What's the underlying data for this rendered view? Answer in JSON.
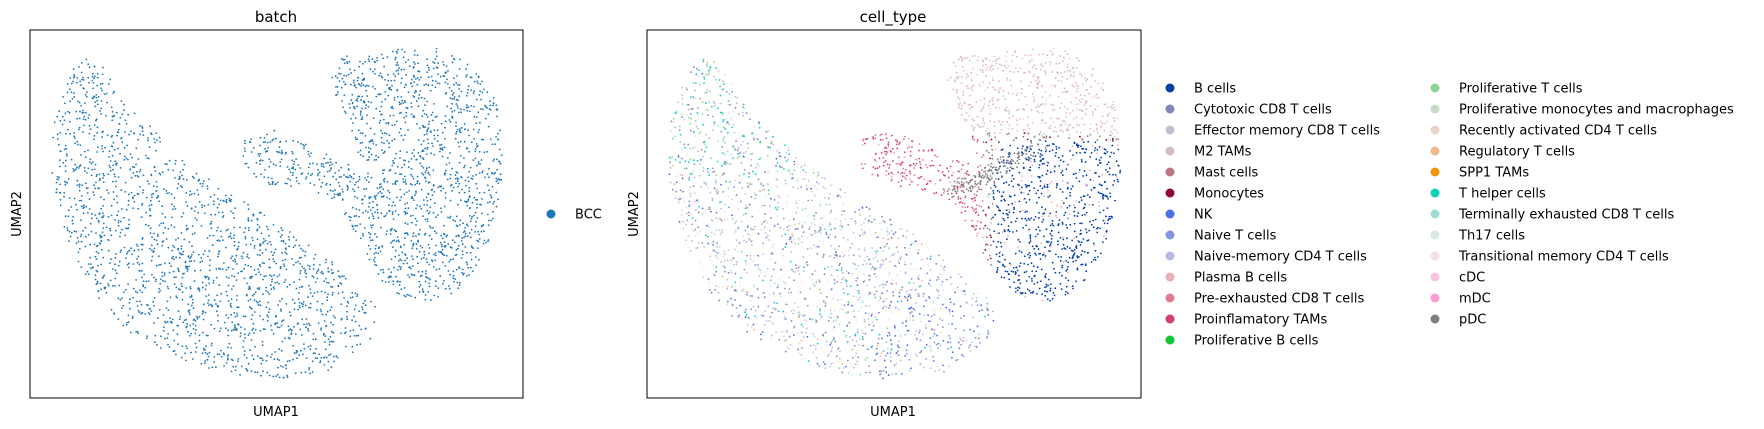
{
  "chart_data": [
    {
      "type": "scatter",
      "title": "batch",
      "xlabel": "UMAP1",
      "ylabel": "UMAP2",
      "legend_position": "right",
      "series": [
        {
          "name": "BCC",
          "color": "#1f77b4"
        }
      ]
    },
    {
      "type": "scatter",
      "title": "cell_type",
      "xlabel": "UMAP1",
      "ylabel": "UMAP2",
      "legend_position": "right",
      "series": [
        {
          "name": "B cells",
          "color": "#023fa5"
        },
        {
          "name": "Cytotoxic CD8 T cells",
          "color": "#7d87b9"
        },
        {
          "name": "Effector memory CD8 T cells",
          "color": "#bec1d4"
        },
        {
          "name": "M2 TAMs",
          "color": "#d6bcc0"
        },
        {
          "name": "Mast cells",
          "color": "#bb7784"
        },
        {
          "name": "Monocytes",
          "color": "#8e063b"
        },
        {
          "name": "NK",
          "color": "#4a6fe3"
        },
        {
          "name": "Naive T cells",
          "color": "#8595e1"
        },
        {
          "name": "Naive-memory CD4 T cells",
          "color": "#b5bbe3"
        },
        {
          "name": "Plasma B cells",
          "color": "#e6afb9"
        },
        {
          "name": "Pre-exhausted CD8 T cells",
          "color": "#e07b91"
        },
        {
          "name": "Proinflamatory TAMs",
          "color": "#d33f6a"
        },
        {
          "name": "Proliferative B cells",
          "color": "#11c638"
        },
        {
          "name": "Proliferative T cells",
          "color": "#8dd593"
        },
        {
          "name": "Proliferative monocytes and macrophages",
          "color": "#c6dec7"
        },
        {
          "name": "Recently activated CD4 T cells",
          "color": "#ead3c6"
        },
        {
          "name": "Regulatory T cells",
          "color": "#f0b98d"
        },
        {
          "name": "SPP1 TAMs",
          "color": "#ef9708"
        },
        {
          "name": "T helper cells",
          "color": "#0fcfc0"
        },
        {
          "name": "Terminally exhausted CD8 T cells",
          "color": "#9cded6"
        },
        {
          "name": "Th17 cells",
          "color": "#d5eae7"
        },
        {
          "name": "Transitional memory CD4 T cells",
          "color": "#f3e1eb"
        },
        {
          "name": "cDC",
          "color": "#f6c4e1"
        },
        {
          "name": "mDC",
          "color": "#f79cd4"
        },
        {
          "name": "pDC",
          "color": "#7f7f7f"
        }
      ]
    }
  ]
}
